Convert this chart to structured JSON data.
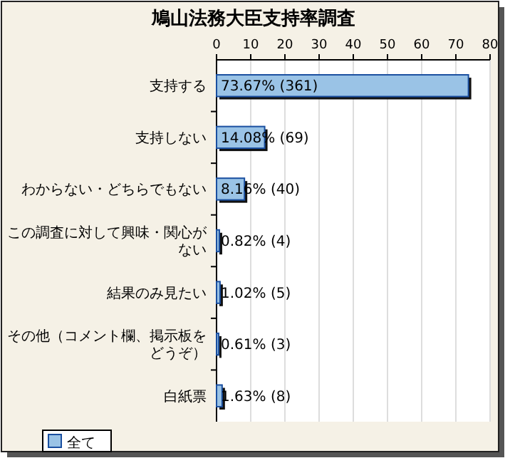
{
  "chart_data": {
    "type": "bar",
    "orientation": "horizontal",
    "title": "鳩山法務大臣支持率調査",
    "categories": [
      "支持する",
      "支持しない",
      "わからない・どちらでもない",
      "この調査に対して興味・関心がない",
      "結果のみ見たい",
      "その他（コメント欄、掲示板をどうぞ）",
      "白紙票"
    ],
    "series": [
      {
        "name": "全て",
        "color": "#9ac3e6",
        "values": [
          73.67,
          14.08,
          8.16,
          0.82,
          1.02,
          0.61,
          1.63
        ],
        "value_labels": [
          "73.67% (361)",
          "14.08% (69)",
          "8.16% (40)",
          "0.82% (4)",
          "1.02% (5)",
          "0.61% (3)",
          "1.63% (8)"
        ]
      }
    ],
    "xlim": [
      0,
      80
    ],
    "xticks": [
      0,
      10,
      20,
      30,
      40,
      50,
      60,
      70,
      80
    ],
    "grid": "x",
    "legend": "bottom left"
  }
}
